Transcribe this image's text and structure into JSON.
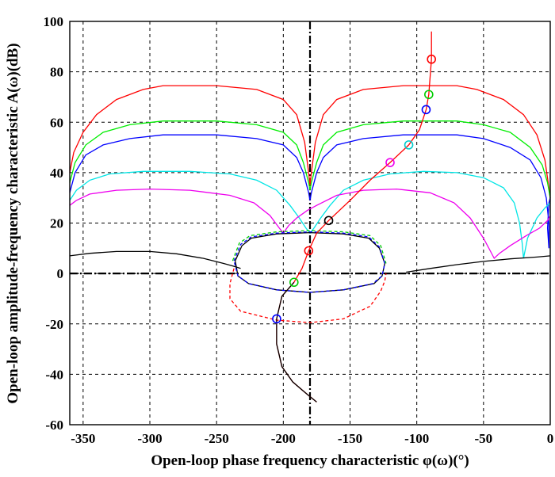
{
  "chart_data": {
    "type": "line",
    "title": "",
    "xlabel": "Open-loop phase frequency characteristic φ(ω)(°)",
    "ylabel": "Open-loop amplitude-frequency characteristic A(ω)(dB)",
    "xlim": [
      -360,
      0
    ],
    "ylim": [
      -60,
      100
    ],
    "xticks": [
      -350,
      -300,
      -250,
      -200,
      -150,
      -100,
      -50,
      0
    ],
    "yticks": [
      100,
      80,
      60,
      40,
      20,
      0,
      -20,
      -40,
      -60
    ],
    "xtick_labels": [
      "-350",
      "-300",
      "-250",
      "-200",
      "-150",
      "-100",
      "-50",
      "0"
    ],
    "ytick_labels": [
      "100",
      "80",
      "60",
      "40",
      "20",
      "0",
      "-20",
      "-40",
      "-60"
    ],
    "grid": true,
    "reference_lines": {
      "x": -180,
      "y": 0
    },
    "series": [
      {
        "color": "#ff0000",
        "style": "solid",
        "points": [
          [
            -360,
            40
          ],
          [
            -357,
            48
          ],
          [
            -350,
            56
          ],
          [
            -340,
            63
          ],
          [
            -325,
            69
          ],
          [
            -305,
            73
          ],
          [
            -290,
            74.5
          ],
          [
            -250,
            74.5
          ],
          [
            -220,
            73
          ],
          [
            -200,
            69
          ],
          [
            -190,
            63
          ],
          [
            -184,
            52
          ],
          [
            -181,
            40
          ],
          [
            -180,
            35
          ],
          [
            -179,
            40
          ],
          [
            -176,
            52
          ],
          [
            -170,
            63
          ],
          [
            -160,
            69
          ],
          [
            -140,
            73
          ],
          [
            -110,
            74.5
          ],
          [
            -70,
            74.5
          ],
          [
            -55,
            73
          ],
          [
            -35,
            69
          ],
          [
            -20,
            63
          ],
          [
            -10,
            55
          ],
          [
            -4,
            45
          ],
          [
            -1,
            34
          ],
          [
            0,
            30
          ]
        ]
      },
      {
        "color": "#00ee00",
        "style": "solid",
        "points": [
          [
            -360,
            36
          ],
          [
            -356,
            44
          ],
          [
            -348,
            51
          ],
          [
            -335,
            56
          ],
          [
            -315,
            59
          ],
          [
            -290,
            60.5
          ],
          [
            -250,
            60.5
          ],
          [
            -220,
            59
          ],
          [
            -200,
            56
          ],
          [
            -190,
            51
          ],
          [
            -185,
            44
          ],
          [
            -181,
            36
          ],
          [
            -180,
            33
          ],
          [
            -179,
            36
          ],
          [
            -175,
            44
          ],
          [
            -170,
            51
          ],
          [
            -160,
            56
          ],
          [
            -140,
            59
          ],
          [
            -110,
            60.5
          ],
          [
            -70,
            60.5
          ],
          [
            -50,
            59
          ],
          [
            -30,
            56
          ],
          [
            -15,
            50
          ],
          [
            -6,
            43
          ],
          [
            -2,
            36
          ],
          [
            0,
            30
          ]
        ]
      },
      {
        "color": "#0000ff",
        "style": "solid",
        "points": [
          [
            -360,
            32
          ],
          [
            -356,
            40
          ],
          [
            -348,
            47
          ],
          [
            -335,
            51
          ],
          [
            -315,
            53.5
          ],
          [
            -290,
            55
          ],
          [
            -250,
            55
          ],
          [
            -220,
            53.5
          ],
          [
            -200,
            51
          ],
          [
            -190,
            46
          ],
          [
            -185,
            40
          ],
          [
            -181,
            32
          ],
          [
            -180,
            29
          ],
          [
            -179,
            32
          ],
          [
            -175,
            40
          ],
          [
            -170,
            46
          ],
          [
            -160,
            51
          ],
          [
            -140,
            53.5
          ],
          [
            -110,
            55
          ],
          [
            -70,
            55
          ],
          [
            -50,
            53.5
          ],
          [
            -30,
            50
          ],
          [
            -15,
            45
          ],
          [
            -7,
            38
          ],
          [
            -3,
            30
          ],
          [
            -1,
            20
          ],
          [
            -1,
            10
          ],
          [
            -2,
            18
          ],
          [
            -1,
            28
          ],
          [
            0,
            30
          ]
        ]
      },
      {
        "color": "#00e5e5",
        "style": "solid",
        "points": [
          [
            -360,
            29
          ],
          [
            -355,
            33
          ],
          [
            -345,
            37
          ],
          [
            -330,
            39.5
          ],
          [
            -305,
            40.5
          ],
          [
            -270,
            40.5
          ],
          [
            -240,
            39.5
          ],
          [
            -220,
            37
          ],
          [
            -205,
            33
          ],
          [
            -195,
            27
          ],
          [
            -188,
            22
          ],
          [
            -183,
            18
          ],
          [
            -180,
            16
          ],
          [
            -177,
            18
          ],
          [
            -172,
            22
          ],
          [
            -165,
            27
          ],
          [
            -155,
            33
          ],
          [
            -140,
            37
          ],
          [
            -120,
            39.5
          ],
          [
            -95,
            40.5
          ],
          [
            -70,
            40
          ],
          [
            -50,
            38
          ],
          [
            -35,
            34
          ],
          [
            -27,
            28
          ],
          [
            -23,
            20
          ],
          [
            -21,
            12
          ],
          [
            -20,
            6
          ],
          [
            -17,
            14
          ],
          [
            -10,
            22
          ],
          [
            -4,
            26
          ],
          [
            0,
            28
          ]
        ]
      },
      {
        "color": "#ee00ee",
        "style": "solid",
        "points": [
          [
            -360,
            27
          ],
          [
            -355,
            29
          ],
          [
            -345,
            31.5
          ],
          [
            -325,
            33
          ],
          [
            -300,
            33.5
          ],
          [
            -270,
            33
          ],
          [
            -240,
            31
          ],
          [
            -222,
            28
          ],
          [
            -210,
            23
          ],
          [
            -203,
            18
          ],
          [
            -200,
            16
          ],
          [
            -196,
            19
          ],
          [
            -190,
            22
          ],
          [
            -182,
            25
          ],
          [
            -175,
            27
          ],
          [
            -160,
            31
          ],
          [
            -140,
            33
          ],
          [
            -115,
            33.5
          ],
          [
            -90,
            32
          ],
          [
            -72,
            28
          ],
          [
            -60,
            22
          ],
          [
            -50,
            14
          ],
          [
            -45,
            9
          ],
          [
            -42,
            6
          ],
          [
            -38,
            8
          ],
          [
            -30,
            11
          ],
          [
            -18,
            15
          ],
          [
            -8,
            18
          ],
          [
            -2,
            21
          ],
          [
            0,
            23
          ]
        ]
      },
      {
        "color": "#000000",
        "style": "solid",
        "points": [
          [
            -360,
            7
          ],
          [
            -345,
            8
          ],
          [
            -325,
            8.7
          ],
          [
            -300,
            8.7
          ],
          [
            -280,
            7.8
          ],
          [
            -260,
            6
          ],
          [
            -245,
            4
          ],
          [
            -238,
            3
          ],
          [
            -232,
            2
          ]
        ]
      },
      {
        "color": "#000000",
        "style": "solid",
        "points": [
          [
            -108,
            0.5
          ],
          [
            -90,
            2
          ],
          [
            -70,
            3.5
          ],
          [
            -50,
            4.8
          ],
          [
            -30,
            5.8
          ],
          [
            -10,
            6.5
          ],
          [
            0,
            7
          ]
        ]
      },
      {
        "color": "#000000",
        "style": "solid",
        "points": [
          [
            -236,
            5
          ],
          [
            -231,
            11
          ],
          [
            -224,
            14
          ],
          [
            -205,
            15.7
          ],
          [
            -180,
            16.2
          ],
          [
            -155,
            15.7
          ],
          [
            -136,
            14
          ],
          [
            -128,
            10
          ],
          [
            -124,
            4
          ],
          [
            -126,
            -1
          ],
          [
            -132,
            -4
          ],
          [
            -155,
            -6.5
          ],
          [
            -180,
            -7.5
          ],
          [
            -205,
            -6.5
          ],
          [
            -226,
            -4
          ],
          [
            -234,
            -1
          ],
          [
            -236,
            5
          ]
        ]
      },
      {
        "color": "#0000ff",
        "style": "dashed",
        "points": [
          [
            -237,
            5
          ],
          [
            -232,
            11.5
          ],
          [
            -224,
            14.5
          ],
          [
            -205,
            16
          ],
          [
            -180,
            16.5
          ],
          [
            -155,
            16
          ],
          [
            -136,
            14.5
          ],
          [
            -128,
            10.5
          ],
          [
            -124,
            4
          ],
          [
            -126,
            -1
          ],
          [
            -133,
            -4
          ],
          [
            -155,
            -6.5
          ],
          [
            -180,
            -7.5
          ],
          [
            -205,
            -6.5
          ],
          [
            -226,
            -4
          ],
          [
            -234,
            -1
          ],
          [
            -237,
            5
          ]
        ]
      },
      {
        "color": "#00cc00",
        "style": "dashed",
        "points": [
          [
            -238,
            5
          ],
          [
            -233,
            12
          ],
          [
            -225,
            15
          ],
          [
            -205,
            16.5
          ],
          [
            -180,
            17
          ],
          [
            -155,
            16.5
          ],
          [
            -135,
            15
          ],
          [
            -127,
            11
          ],
          [
            -123,
            4
          ]
        ]
      },
      {
        "color": "#ff0000",
        "style": "dashed",
        "points": [
          [
            -237,
            2
          ],
          [
            -240,
            -4
          ],
          [
            -240,
            -10
          ],
          [
            -232,
            -15
          ],
          [
            -205,
            -18.5
          ],
          [
            -180,
            -19.5
          ],
          [
            -155,
            -18
          ],
          [
            -135,
            -13
          ],
          [
            -127,
            -7
          ],
          [
            -124,
            -3
          ],
          [
            -123,
            0
          ]
        ]
      },
      {
        "color": "#ff0000",
        "style": "solid",
        "points": [
          [
            -175,
            -51
          ],
          [
            -182,
            -48
          ],
          [
            -193,
            -43
          ],
          [
            -201,
            -37
          ],
          [
            -205,
            -28
          ],
          [
            -205,
            -18
          ],
          [
            -201,
            -9
          ],
          [
            -192,
            -3.5
          ],
          [
            -186,
            2
          ],
          [
            -181,
            9
          ],
          [
            -175,
            16
          ],
          [
            -166,
            21
          ],
          [
            -150,
            29
          ],
          [
            -135,
            37
          ],
          [
            -120,
            44
          ],
          [
            -106,
            51
          ],
          [
            -98,
            57
          ],
          [
            -93,
            65
          ],
          [
            -91,
            71
          ],
          [
            -89,
            85
          ],
          [
            -89,
            96
          ]
        ]
      },
      {
        "color": "#000000",
        "style": "solid",
        "points": [
          [
            -175,
            -51
          ],
          [
            -182,
            -48
          ],
          [
            -193,
            -43
          ],
          [
            -201,
            -37
          ],
          [
            -205,
            -28
          ],
          [
            -205,
            -18
          ],
          [
            -201,
            -9
          ],
          [
            -192,
            -3.5
          ]
        ]
      }
    ],
    "markers": [
      {
        "color": "#ff0000",
        "x": -89,
        "y": 85
      },
      {
        "color": "#00cc00",
        "x": -91,
        "y": 71
      },
      {
        "color": "#0000ff",
        "x": -93,
        "y": 65
      },
      {
        "color": "#00cccc",
        "x": -106,
        "y": 51
      },
      {
        "color": "#ee00ee",
        "x": -120,
        "y": 44
      },
      {
        "color": "#000000",
        "x": -166,
        "y": 21
      },
      {
        "color": "#ff0000",
        "x": -181,
        "y": 9
      },
      {
        "color": "#00cc00",
        "x": -192,
        "y": -3.5
      },
      {
        "color": "#0000ff",
        "x": -205,
        "y": -18
      }
    ]
  }
}
